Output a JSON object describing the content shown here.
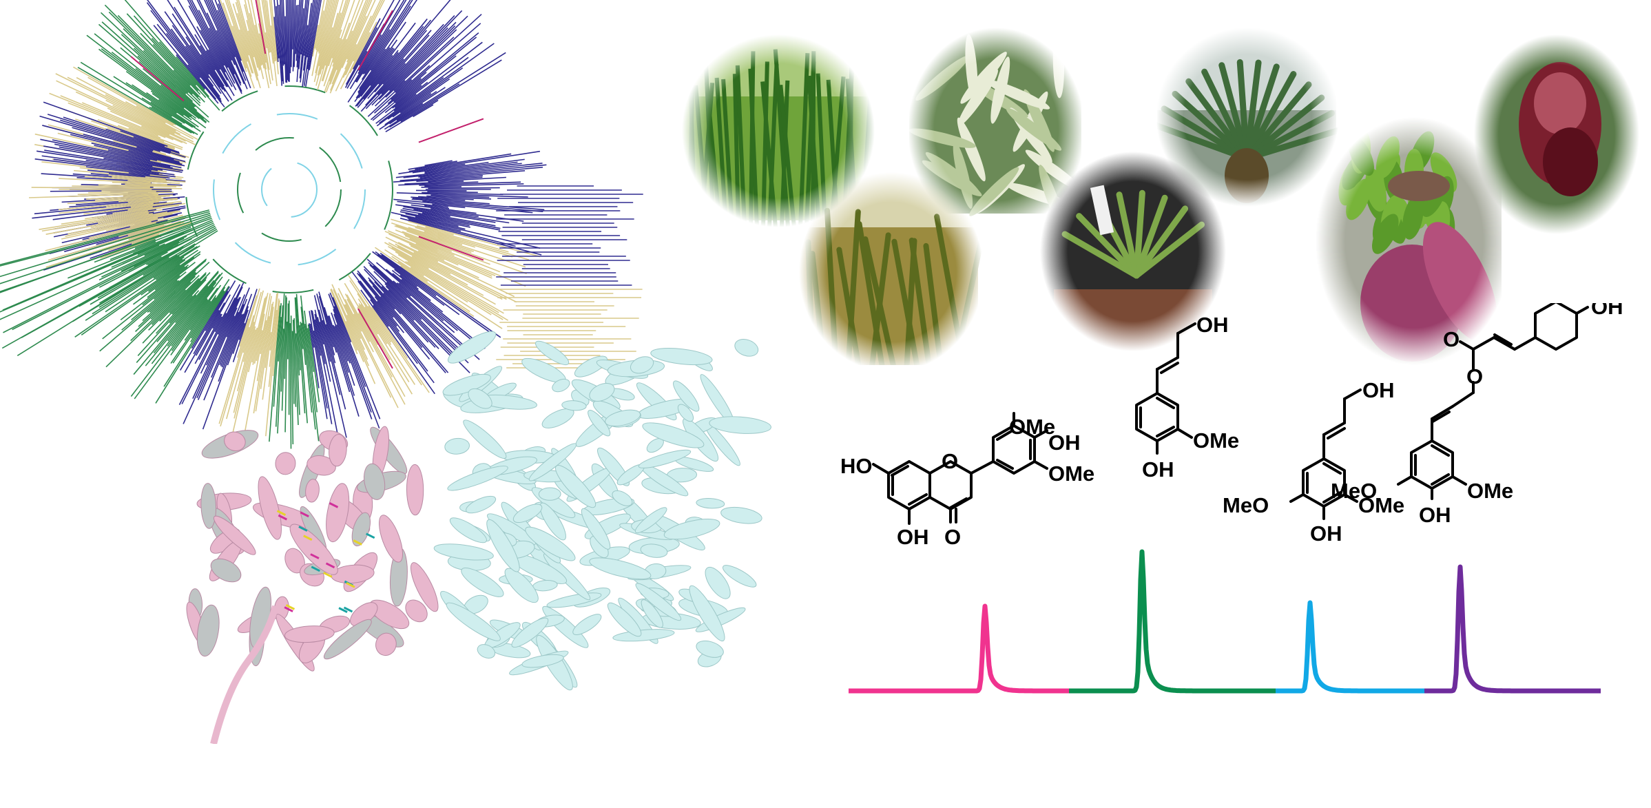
{
  "colors": {
    "clade_blue": "#2e2a8f",
    "clade_gold": "#d9c98a",
    "clade_green": "#2d8a4e",
    "clade_cyan": "#7fd3e6",
    "clade_magenta": "#c21f6b",
    "protein_pink": "#e8b7cd",
    "protein_grey": "#bfc4c4",
    "protein_cyan": "#cfeeee",
    "trace_pink": "#f0338f",
    "trace_green": "#0b8f4f",
    "trace_cyan": "#11a8e6",
    "trace_purple": "#6e2c9c"
  },
  "photos": [
    {
      "name": "rice-field"
    },
    {
      "name": "bamboo-leaves"
    },
    {
      "name": "pineapple-plant"
    },
    {
      "name": "slipper-orchid"
    },
    {
      "name": "maize-stalks"
    },
    {
      "name": "orchid-seedling"
    },
    {
      "name": "banana-bunch"
    }
  ],
  "structures": {
    "tricin": {
      "labels": [
        "HO",
        "OMe",
        "OH",
        "OMe",
        "OH",
        "O"
      ]
    },
    "coniferyl_alcohol": {
      "labels": [
        "OH",
        "OMe",
        "OH"
      ]
    },
    "sinapyl_alcohol": {
      "labels": [
        "OH",
        "MeO",
        "OMe",
        "OH"
      ]
    },
    "sinapyl_p_coumarate": {
      "labels": [
        "OH",
        "O",
        "O",
        "MeO",
        "OMe",
        "OH"
      ]
    }
  },
  "chromatogram": {
    "peaks": [
      {
        "compound": "tricin",
        "color": "#f0338f"
      },
      {
        "compound": "coniferyl_alcohol",
        "color": "#0b8f4f"
      },
      {
        "compound": "sinapyl_alcohol",
        "color": "#11a8e6"
      },
      {
        "compound": "sinapyl_p_coumarate",
        "color": "#6e2c9c"
      }
    ]
  }
}
